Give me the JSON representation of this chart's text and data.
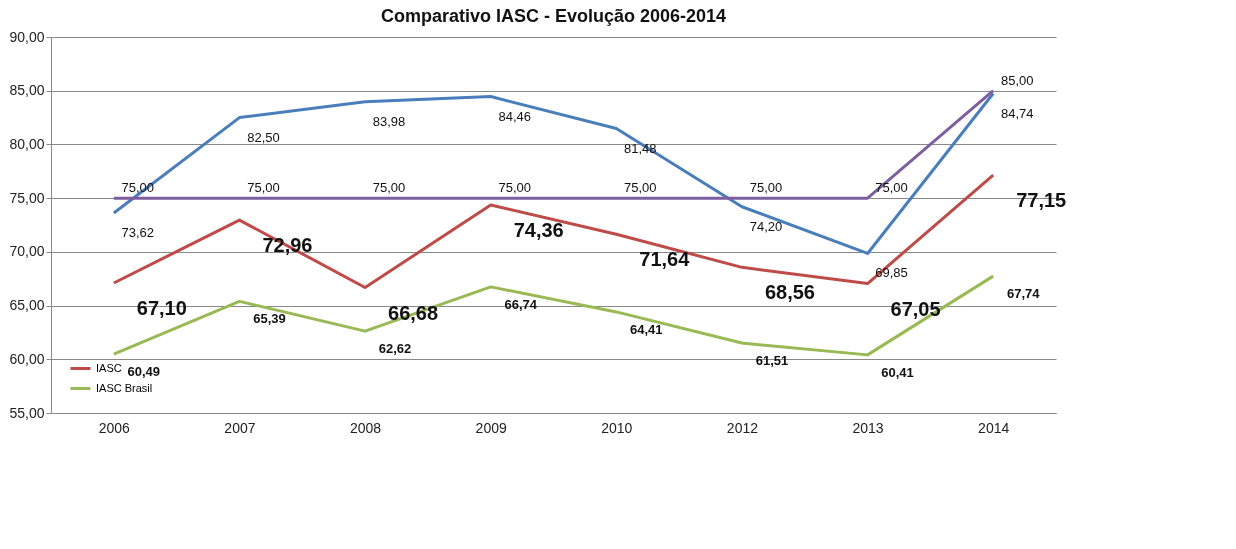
{
  "chart_data": {
    "type": "line",
    "title": "Comparativo IASC - Evolução 2006-2014",
    "categories": [
      "2006",
      "2007",
      "2008",
      "2009",
      "2010",
      "2012",
      "2013",
      "2014"
    ],
    "series": [
      {
        "color": "#4a7ebb",
        "values": [
          73.62,
          82.5,
          83.98,
          84.46,
          81.48,
          74.2,
          69.85,
          84.74
        ],
        "value_labels": [
          "73,62",
          "82,50",
          "83,98",
          "84,46",
          "81,48",
          "74,20",
          "69,85",
          "84,74"
        ]
      },
      {
        "color": "#7d5fa0",
        "values": [
          75,
          75,
          75,
          75,
          75,
          75,
          75,
          85
        ],
        "value_labels": [
          "75,00",
          "75,00",
          "75,00",
          "75,00",
          "75,00",
          "75,00",
          "75,00",
          "85,00"
        ]
      },
      {
        "name": "IASC",
        "color": "#be4b48",
        "values": [
          67.1,
          72.96,
          66.68,
          74.36,
          71.64,
          68.56,
          67.05,
          77.15
        ],
        "value_labels": [
          "67,10",
          "72,96",
          "66,68",
          "74,36",
          "71,64",
          "68,56",
          "67,05",
          "77,15"
        ]
      },
      {
        "name": "IASC Brasil",
        "color": "#98b954",
        "values": [
          60.49,
          65.39,
          62.62,
          66.74,
          64.41,
          61.51,
          60.41,
          67.74
        ],
        "value_labels": [
          "60,49",
          "65,39",
          "62,62",
          "66,74",
          "64,41",
          "61,51",
          "60,41",
          "67,74"
        ]
      }
    ],
    "ylim": [
      55,
      90
    ],
    "yticks": [
      {
        "value": 55,
        "label": "55,00"
      },
      {
        "value": 60,
        "label": "60,00"
      },
      {
        "value": 65,
        "label": "65,00"
      },
      {
        "value": 70,
        "label": "70,00"
      },
      {
        "value": 75,
        "label": "75,00"
      },
      {
        "value": 80,
        "label": "80,00"
      },
      {
        "value": 85,
        "label": "85,00"
      },
      {
        "value": 90,
        "label": "90,00"
      }
    ],
    "grid": "y",
    "legend": "bottom left",
    "marker": "none",
    "line_style": "solid"
  }
}
